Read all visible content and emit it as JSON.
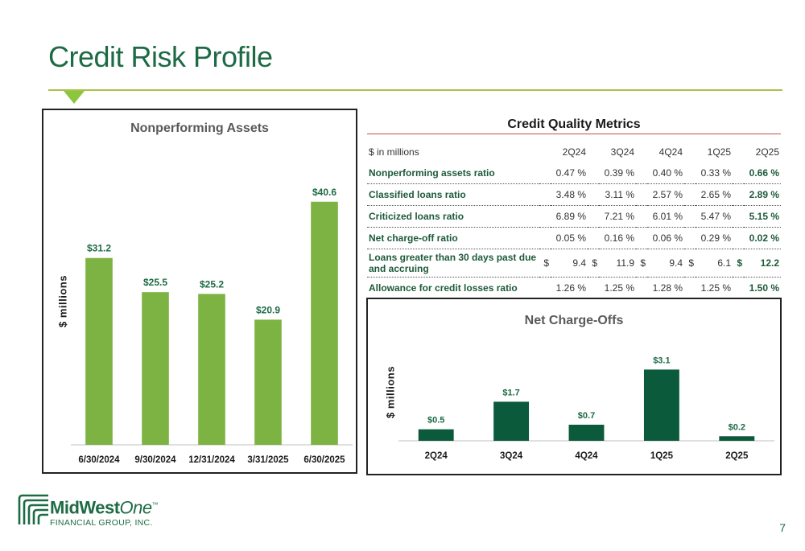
{
  "slide": {
    "title": "Credit Risk Profile",
    "page_number": "7"
  },
  "npa_panel": {
    "title": "Nonperforming Assets",
    "ylabel": "$ millions"
  },
  "nco_panel": {
    "title": "Net Charge-Offs",
    "ylabel": "$ millions"
  },
  "metrics": {
    "title": "Credit Quality Metrics",
    "header_label": "$ in millions",
    "columns": [
      "2Q24",
      "3Q24",
      "4Q24",
      "1Q25",
      "2Q25"
    ],
    "rows": [
      {
        "label": "Nonperforming assets ratio",
        "values": [
          "0.47 %",
          "0.39 %",
          "0.40 %",
          "0.33 %",
          "0.66 %"
        ]
      },
      {
        "label": "Classified loans ratio",
        "values": [
          "3.48 %",
          "3.11 %",
          "2.57 %",
          "2.65 %",
          "2.89 %"
        ]
      },
      {
        "label": "Criticized loans ratio",
        "values": [
          "6.89 %",
          "7.21 %",
          "6.01 %",
          "5.47 %",
          "5.15 %"
        ]
      },
      {
        "label": "Net charge-off ratio",
        "values": [
          "0.05 %",
          "0.16 %",
          "0.06 %",
          "0.29 %",
          "0.02 %"
        ]
      },
      {
        "label": "Loans greater than 30 days past due and accruing",
        "currency": "$",
        "values": [
          "9.4",
          "11.9",
          "9.4",
          "6.1",
          "12.2"
        ]
      },
      {
        "label": "Allowance for credit losses ratio",
        "values": [
          "1.26 %",
          "1.25 %",
          "1.28 %",
          "1.25 %",
          "1.50 %"
        ]
      }
    ]
  },
  "logo": {
    "name_bold": "MidWest",
    "name_italic": "One",
    "tm": "™",
    "subtitle": "FINANCIAL GROUP, INC."
  },
  "colors": {
    "brand_green": "#1d6b44",
    "light_green": "#7cb342",
    "dark_green": "#0b5a3c"
  },
  "chart_data": [
    {
      "type": "bar",
      "title": "Nonperforming Assets",
      "ylabel": "$ millions",
      "categories": [
        "6/30/2024",
        "9/30/2024",
        "12/31/2024",
        "3/31/2025",
        "6/30/2025"
      ],
      "values": [
        31.2,
        25.5,
        25.2,
        20.9,
        40.6
      ],
      "labels": [
        "$31.2",
        "$25.5",
        "$25.2",
        "$20.9",
        "$40.6"
      ],
      "ylim": [
        0,
        45
      ],
      "grid": false
    },
    {
      "type": "bar",
      "title": "Net Charge-Offs",
      "ylabel": "$ millions",
      "categories": [
        "2Q24",
        "3Q24",
        "4Q24",
        "1Q25",
        "2Q25"
      ],
      "values": [
        0.5,
        1.7,
        0.7,
        3.1,
        0.2
      ],
      "labels": [
        "$0.5",
        "$1.7",
        "$0.7",
        "$3.1",
        "$0.2"
      ],
      "ylim": [
        0,
        3.5
      ],
      "grid": false
    }
  ]
}
